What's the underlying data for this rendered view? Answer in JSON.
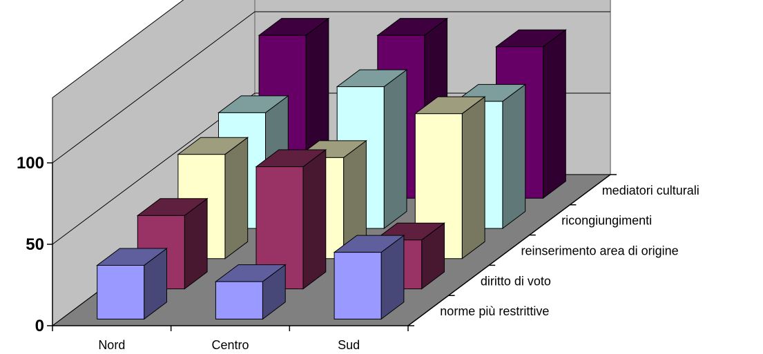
{
  "chart_data": {
    "type": "bar",
    "subtype": "3d-column",
    "categories": [
      "Nord",
      "Centro",
      "Sud"
    ],
    "series": [
      {
        "name": "norme più restrittive",
        "values": [
          33,
          23,
          41
        ],
        "color": "#9999ff"
      },
      {
        "name": "diritto di voto",
        "values": [
          45,
          75,
          30
        ],
        "color": "#993366"
      },
      {
        "name": "reinserimento area di origine",
        "values": [
          64,
          62,
          89
        ],
        "color": "#ffffcc"
      },
      {
        "name": "ricongiungimenti",
        "values": [
          71,
          87,
          78
        ],
        "color": "#ccffff"
      },
      {
        "name": "mediatori culturali",
        "values": [
          100,
          100,
          93
        ],
        "color": "#660066"
      }
    ],
    "yticks": [
      0,
      50,
      100
    ],
    "ylim": [
      0,
      140
    ],
    "grid": true,
    "legend": "none"
  }
}
